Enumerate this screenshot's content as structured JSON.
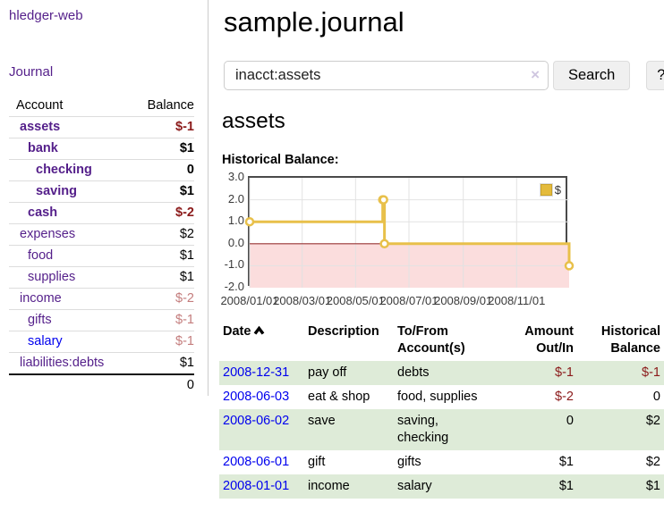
{
  "brand": "hledger-web",
  "nav": {
    "journal": "Journal"
  },
  "sidebar": {
    "header": {
      "account": "Account",
      "balance": "Balance"
    },
    "accounts": [
      {
        "name": "assets",
        "balance": "$-1",
        "depth": 0,
        "bold": true,
        "balance_tone": "negative-strong"
      },
      {
        "name": "bank",
        "balance": "$1",
        "depth": 1,
        "bold": true,
        "balance_tone": "normal"
      },
      {
        "name": "checking",
        "balance": "0",
        "depth": 2,
        "bold": true,
        "balance_tone": "normal"
      },
      {
        "name": "saving",
        "balance": "$1",
        "depth": 2,
        "bold": true,
        "balance_tone": "normal"
      },
      {
        "name": "cash",
        "balance": "$-2",
        "depth": 1,
        "bold": true,
        "balance_tone": "negative-strong"
      },
      {
        "name": "expenses",
        "balance": "$2",
        "depth": 0,
        "bold": false,
        "balance_tone": "normal"
      },
      {
        "name": "food",
        "balance": "$1",
        "depth": 1,
        "bold": false,
        "balance_tone": "normal"
      },
      {
        "name": "supplies",
        "balance": "$1",
        "depth": 1,
        "bold": false,
        "balance_tone": "normal"
      },
      {
        "name": "income",
        "balance": "$-2",
        "depth": 0,
        "bold": false,
        "balance_tone": "negative-soft"
      },
      {
        "name": "gifts",
        "balance": "$-1",
        "depth": 1,
        "bold": false,
        "balance_tone": "negative-soft"
      },
      {
        "name": "salary",
        "balance": "$-1",
        "depth": 1,
        "bold": false,
        "balance_tone": "negative-soft",
        "link_color": "blue"
      },
      {
        "name": "liabilities:debts",
        "balance": "$1",
        "depth": 0,
        "bold": false,
        "balance_tone": "normal"
      }
    ],
    "total": "0"
  },
  "main": {
    "title": "sample.journal",
    "search": {
      "value": "inacct:assets",
      "clear": "×",
      "button": "Search",
      "help": "?"
    },
    "account_heading": "assets",
    "chart_title": "Historical Balance:"
  },
  "chart_data": {
    "type": "line",
    "title": "Historical Balance:",
    "series": [
      {
        "name": "$",
        "color": "#e8c04a",
        "step": true,
        "points": [
          {
            "x": "2008-01-01",
            "y": 1
          },
          {
            "x": "2008-06-01",
            "y": 2
          },
          {
            "x": "2008-06-02",
            "y": 2
          },
          {
            "x": "2008-06-03",
            "y": 0
          },
          {
            "x": "2008-12-31",
            "y": -1
          }
        ]
      }
    ],
    "xlim": [
      "2008-01-01",
      "2008-12-31"
    ],
    "ylim": [
      -2,
      3
    ],
    "x_ticks": [
      "2008/01/01",
      "2008/03/01",
      "2008/05/01",
      "2008/07/01",
      "2008/09/01",
      "2008/11/01"
    ],
    "y_ticks": [
      "3.0",
      "2.0",
      "1.0",
      "0.0",
      "-1.0",
      "-2.0"
    ],
    "grid": true,
    "negative_region_fill": "#fbdddd",
    "zero_line_color": "#993333",
    "legend": {
      "label": "$",
      "swatch_color": "#e4bb3c",
      "position": "top-right"
    }
  },
  "register": {
    "headers": {
      "date": "Date",
      "description": "Description",
      "accounts": "To/From Account(s)",
      "amount": "Amount Out/In",
      "balance": "Historical Balance"
    },
    "sort": "ascending",
    "rows": [
      {
        "date": "2008-12-31",
        "description": "pay off",
        "accounts": "debts",
        "amount": "$-1",
        "amount_negative": true,
        "balance": "$-1",
        "balance_negative": true
      },
      {
        "date": "2008-06-03",
        "description": "eat & shop",
        "accounts": "food, supplies",
        "amount": "$-2",
        "amount_negative": true,
        "balance": "0",
        "balance_negative": false
      },
      {
        "date": "2008-06-02",
        "description": "save",
        "accounts": "saving, checking",
        "amount": "0",
        "amount_negative": false,
        "balance": "$2",
        "balance_negative": false
      },
      {
        "date": "2008-06-01",
        "description": "gift",
        "accounts": "gifts",
        "amount": "$1",
        "amount_negative": false,
        "balance": "$2",
        "balance_negative": false
      },
      {
        "date": "2008-01-01",
        "description": "income",
        "accounts": "salary",
        "amount": "$1",
        "amount_negative": false,
        "balance": "$1",
        "balance_negative": false
      }
    ]
  },
  "colors": {
    "link_purple": "#541f8a",
    "link_blue": "#0000ee",
    "negative_strong": "#8b1a1a",
    "negative_soft": "#c47d7d",
    "row_stripe_green": "#deebd8",
    "series_gold": "#e8c04a",
    "chart_border": "#4a4a4a"
  }
}
